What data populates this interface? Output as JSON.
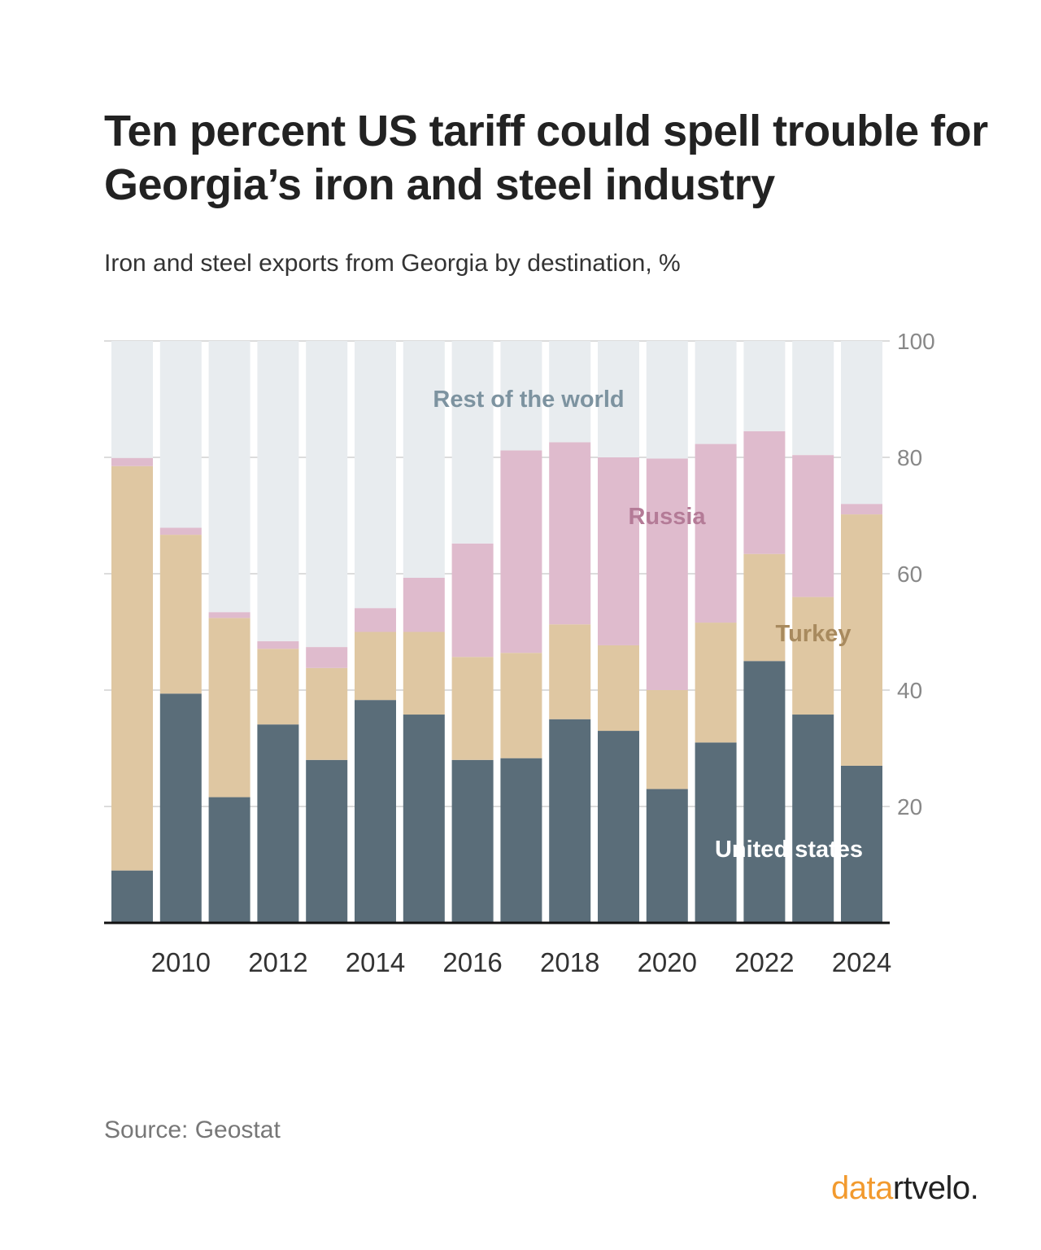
{
  "title": "Ten percent US tariff could spell trouble for Georgia’s iron and steel industry",
  "subtitle": "Iron and steel exports from Georgia by destination, %",
  "source": "Source: Geostat",
  "logo": {
    "part1": "data",
    "part2": "rtvelo."
  },
  "chart_data": {
    "type": "bar",
    "stacked": true,
    "categories": [
      "2009",
      "2010",
      "2011",
      "2012",
      "2013",
      "2014",
      "2015",
      "2016",
      "2017",
      "2018",
      "2019",
      "2020",
      "2021",
      "2022",
      "2023",
      "2024"
    ],
    "x_tick_labels": [
      "",
      "2010",
      "",
      "2012",
      "",
      "2014",
      "",
      "2016",
      "",
      "2018",
      "",
      "2020",
      "",
      "2022",
      "",
      "2024"
    ],
    "series": [
      {
        "name": "United states",
        "color": "#5a6d79",
        "label_color": "#ffffff",
        "values": [
          9,
          39.4,
          21.6,
          34.1,
          28,
          38.3,
          35.8,
          28,
          28.3,
          35,
          33,
          23,
          31,
          45,
          35.8,
          27
        ]
      },
      {
        "name": "Turkey",
        "color": "#dfc7a2",
        "label_color": "#a88a5e",
        "values": [
          69.5,
          27.3,
          30.8,
          13,
          15.8,
          11.7,
          14.2,
          17.7,
          18.1,
          16.3,
          14.7,
          17,
          20.6,
          18.4,
          20.2,
          43.2
        ]
      },
      {
        "name": "Russia",
        "color": "#dfbbcd",
        "label_color": "#b47b97",
        "values": [
          1.4,
          1.2,
          1,
          1.3,
          3.6,
          4.1,
          9.3,
          19.5,
          34.8,
          31.3,
          32.3,
          39.8,
          30.7,
          21.1,
          24.4,
          1.8
        ]
      },
      {
        "name": "Rest of the world",
        "color": "#e8ecef",
        "label_color": "#7d93a0",
        "values": [
          20.1,
          32.1,
          46.6,
          51.6,
          52.6,
          45.9,
          40.7,
          34.8,
          18.8,
          17.4,
          20,
          20.2,
          17.7,
          15.5,
          19.6,
          28
        ]
      }
    ],
    "ylim": [
      0,
      100
    ],
    "yticks": [
      20,
      40,
      60,
      80,
      100
    ],
    "ytick_labels": [
      "20",
      "40",
      "60",
      "80",
      "100"
    ],
    "y_axis_side": "right",
    "grid": true,
    "legend": "inline labels on bars"
  }
}
